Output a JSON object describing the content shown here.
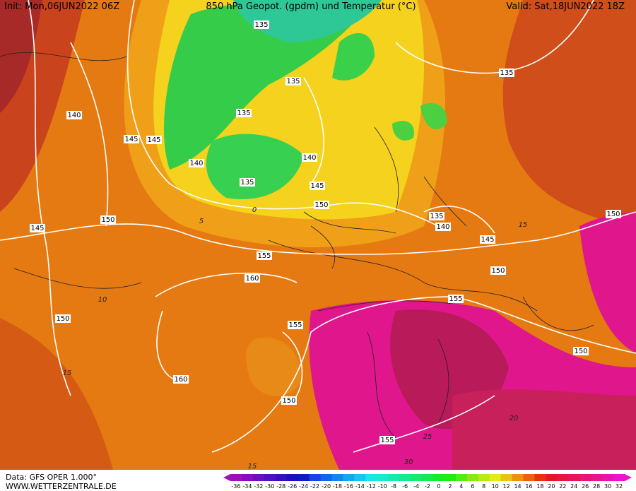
{
  "header": {
    "init": "Init: Mon,06JUN2022 06Z",
    "title": "850 hPa Geopot. (gpdm) und Temperatur (°C)",
    "valid": "Valid: Sat,18JUN2022 18Z"
  },
  "map": {
    "geopotential_labels": [
      135,
      135,
      135,
      135,
      135,
      135,
      140,
      140,
      140,
      140,
      145,
      145,
      145,
      145,
      145,
      150,
      150,
      150,
      150,
      150,
      150,
      150,
      155,
      155,
      155,
      155,
      160,
      160
    ],
    "temperature_labels": [
      0,
      5,
      10,
      15,
      15,
      20,
      25,
      30,
      15
    ]
  },
  "footer": {
    "data": "Data: GFS OPER 1.000°",
    "site": "WWW.WETTERZENTRALE.DE"
  },
  "colorbar": {
    "ticks": [
      -36,
      -34,
      -32,
      -30,
      -28,
      -26,
      -24,
      -22,
      -20,
      -18,
      -16,
      -14,
      -12,
      -10,
      -8,
      -6,
      -4,
      -2,
      0,
      2,
      4,
      6,
      8,
      10,
      12,
      14,
      16,
      18,
      20,
      22,
      24,
      26,
      28,
      30,
      32
    ]
  }
}
